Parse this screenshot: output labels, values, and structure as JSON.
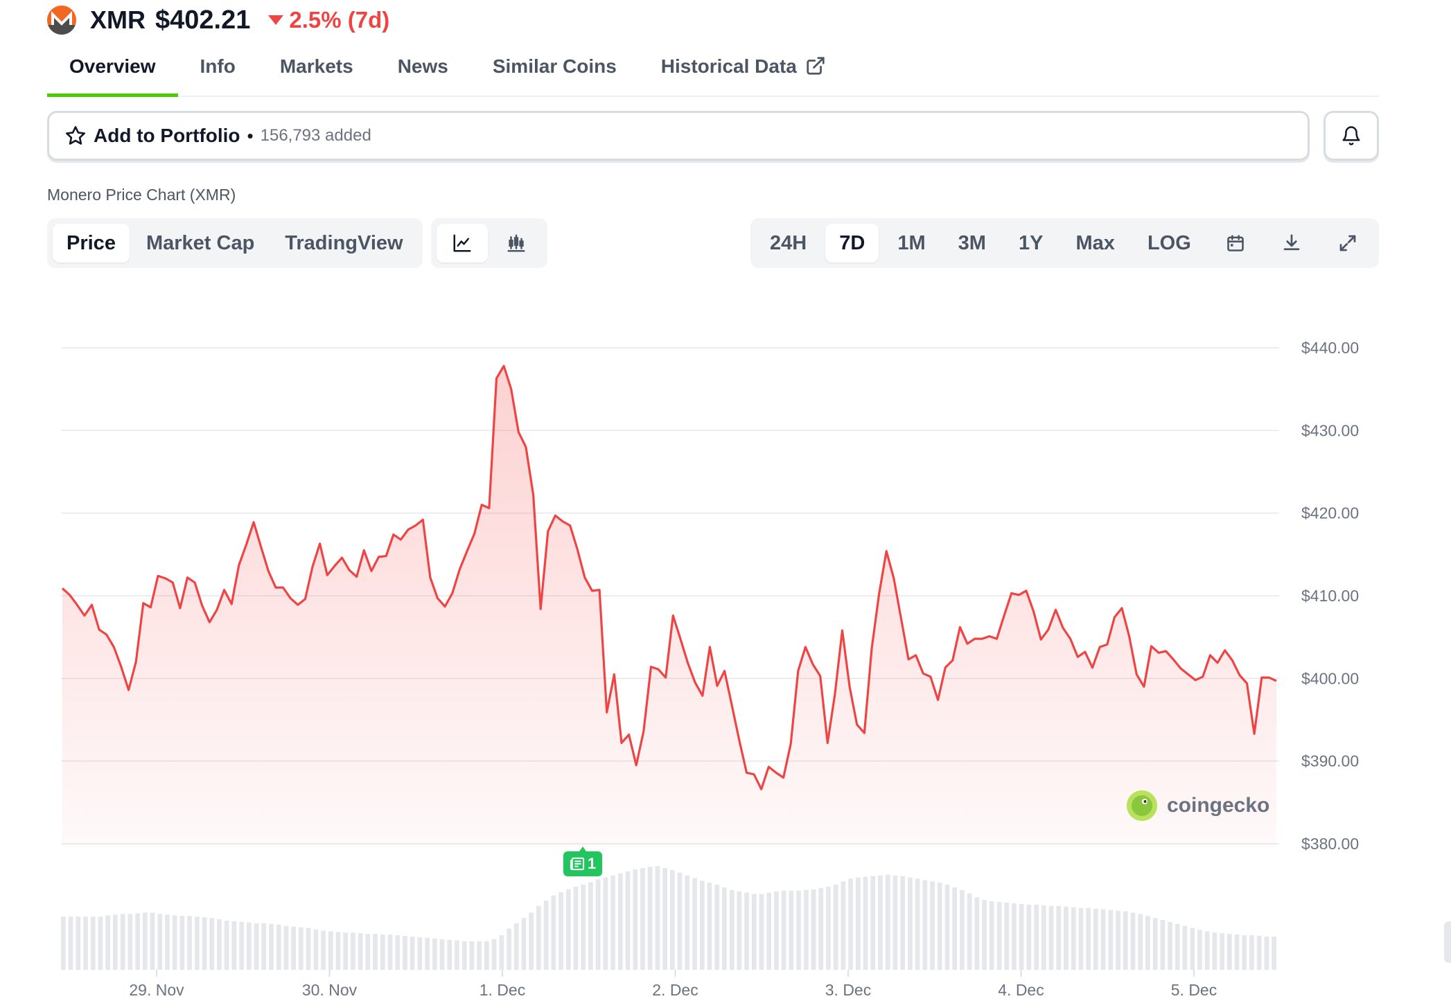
{
  "header": {
    "symbol": "XMR",
    "price": "$402.21",
    "change": "2.5% (7d)",
    "change_color": "#ef4444",
    "logo_icon": "monero-logo"
  },
  "tabs": [
    {
      "label": "Overview",
      "active": true
    },
    {
      "label": "Info"
    },
    {
      "label": "Markets"
    },
    {
      "label": "News"
    },
    {
      "label": "Similar Coins"
    },
    {
      "label": "Historical Data",
      "icon": "external-link-icon"
    }
  ],
  "portfolio": {
    "label": "Add to Portfolio",
    "separator": "•",
    "count": "156,793 added",
    "star_icon": "star-icon",
    "bell_icon": "bell-icon"
  },
  "chart_title": "Monero Price Chart (XMR)",
  "toolbar": {
    "view_tabs": [
      "Price",
      "Market Cap",
      "TradingView"
    ],
    "active_view": "Price",
    "chart_types": [
      "line-chart-icon",
      "candlestick-icon"
    ],
    "active_chart_type": "line-chart-icon",
    "ranges": [
      "24H",
      "7D",
      "1M",
      "3M",
      "1Y",
      "Max",
      "LOG"
    ],
    "active_range": "7D",
    "tools": [
      "calendar-icon",
      "download-icon",
      "expand-icon"
    ]
  },
  "watermark": "coingecko",
  "news_badge": "1",
  "colors": {
    "accent_green": "#4bcc00",
    "line_red": "#ef4444",
    "news_green": "#22c55e"
  },
  "chart_data": {
    "type": "area",
    "title": "",
    "xlabel": "",
    "ylabel": "",
    "ylim": [
      380,
      440
    ],
    "yticks": [
      "$440.00",
      "$430.00",
      "$420.00",
      "$410.00",
      "$400.00",
      "$390.00",
      "$380.00"
    ],
    "xticks": [
      "29. Nov",
      "30. Nov",
      "1. Dec",
      "2. Dec",
      "3. Dec",
      "4. Dec",
      "5. Dec"
    ],
    "grid": true,
    "series": [
      {
        "values": [
          410.9,
          410.1,
          408.9,
          407.6,
          408.9,
          405.9,
          405.3,
          403.8,
          401.4,
          398.6,
          402.0,
          409.1,
          408.6,
          412.4,
          412.1,
          411.6,
          408.5,
          412.2,
          411.6,
          408.8,
          406.8,
          408.3,
          410.7,
          409.0,
          413.7,
          416.2,
          418.9,
          415.9,
          413.0,
          411.0,
          411.0,
          409.7,
          408.9,
          409.6,
          413.5,
          416.3,
          412.5,
          413.6,
          414.6,
          413.1,
          412.3,
          415.5,
          413.0,
          414.7,
          414.8,
          417.4,
          416.8,
          418.0,
          418.5,
          419.2,
          412.2,
          409.7,
          408.7,
          410.3,
          413.2,
          415.4,
          417.5,
          421.0,
          420.6,
          436.3,
          437.8,
          435.0,
          429.8,
          428.0,
          422.2,
          408.4,
          417.8,
          419.7,
          419.0,
          418.5,
          415.6,
          412.2,
          410.6,
          410.7,
          395.9,
          400.5,
          392.2,
          393.2,
          389.5,
          393.6,
          401.4,
          401.1,
          400.1,
          407.6,
          404.8,
          401.9,
          399.5,
          397.9,
          403.8,
          399.1,
          400.9,
          396.7,
          392.5,
          388.6,
          388.4,
          386.6,
          389.3,
          388.6,
          388.0,
          392.1,
          400.9,
          403.8,
          401.7,
          400.3,
          392.2,
          398.1,
          405.8,
          399.0,
          394.4,
          393.4,
          403.6,
          410.2,
          415.4,
          412.1,
          407.2,
          402.3,
          402.8,
          400.6,
          400.2,
          397.4,
          401.3,
          402.2,
          406.2,
          404.2,
          404.8,
          404.8,
          405.1,
          404.8,
          407.6,
          410.3,
          410.1,
          410.6,
          408.1,
          404.7,
          405.9,
          408.3,
          406.1,
          404.8,
          402.6,
          403.2,
          401.3,
          403.8,
          404.1,
          407.4,
          408.5,
          405.1,
          400.5,
          399.0,
          403.9,
          403.1,
          403.3,
          402.3,
          401.2,
          400.5,
          399.8,
          400.2,
          402.8,
          401.9,
          403.4,
          402.2,
          400.4,
          399.4,
          393.3,
          400.1,
          400.1,
          399.7
        ]
      }
    ],
    "volume": [
      8,
      8,
      8,
      8,
      8,
      8,
      8.2,
      8.3,
      8.4,
      8.4,
      8.5,
      8.6,
      8.6,
      8.4,
      8.3,
      8.2,
      8.1,
      8.1,
      8.0,
      7.9,
      7.8,
      7.6,
      7.4,
      7.3,
      7.2,
      7.1,
      7.0,
      7.0,
      6.9,
      6.8,
      6.6,
      6.5,
      6.4,
      6.3,
      6.1,
      5.9,
      5.8,
      5.7,
      5.6,
      5.6,
      5.5,
      5.4,
      5.4,
      5.3,
      5.3,
      5.2,
      5.1,
      5.0,
      4.9,
      4.8,
      4.7,
      4.6,
      4.5,
      4.4,
      4.3,
      4.3,
      4.3,
      4.3,
      4.6,
      5.2,
      6.2,
      7.0,
      7.8,
      8.6,
      9.6,
      10.4,
      11.2,
      11.7,
      12.1,
      12.5,
      12.8,
      13.2,
      13.6,
      13.9,
      14.2,
      14.5,
      14.8,
      15.1,
      15.3,
      15.5,
      15.6,
      15.3,
      15.0,
      14.6,
      14.2,
      13.8,
      13.4,
      13.1,
      12.8,
      12.4,
      12.0,
      11.8,
      11.6,
      11.4,
      11.4,
      11.6,
      11.8,
      11.9,
      11.9,
      11.9,
      12.0,
      12.1,
      12.3,
      12.5,
      12.8,
      13.3,
      13.7,
      13.9,
      14.0,
      14.1,
      14.2,
      14.3,
      14.2,
      14.1,
      13.9,
      13.7,
      13.5,
      13.3,
      13.1,
      12.8,
      12.4,
      12.0,
      11.5,
      10.9,
      10.5,
      10.3,
      10.2,
      10.1,
      10.0,
      9.9,
      9.8,
      9.8,
      9.7,
      9.6,
      9.6,
      9.5,
      9.4,
      9.3,
      9.3,
      9.2,
      9.1,
      9.0,
      8.9,
      8.8,
      8.6,
      8.4,
      8.1,
      7.8,
      7.5,
      7.2,
      6.9,
      6.6,
      6.3,
      6.0,
      5.8,
      5.6,
      5.5,
      5.4,
      5.3,
      5.2,
      5.2,
      5.1,
      5.0,
      5.0
    ]
  }
}
